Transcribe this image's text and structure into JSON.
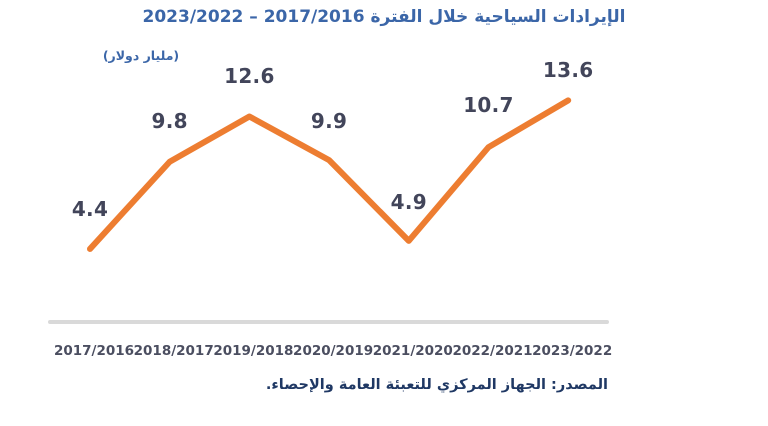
{
  "title": "الإيرادات السياحية خلال الفترة 2017/2016 – 2023/2022",
  "unit_label": "(مليار دولار)",
  "source": "المصدر: الجهاز المركزي للتعبئة العامة والإحصاء.",
  "colors": {
    "title": "#3B66A8",
    "unit_label": "#3B66A8",
    "line": "#ED7D31",
    "data_label": "#42455A",
    "x_label": "#4B4E60",
    "axis_line": "#D9D9D9",
    "source": "#1F3864",
    "background": "#FFFFFF"
  },
  "chart_data": {
    "type": "line",
    "title": "الإيرادات السياحية خلال الفترة 2017/2016 – 2023/2022",
    "categories": [
      "2017/2016",
      "2018/2017",
      "2019/2018",
      "2020/2019",
      "2021/2020",
      "2022/2021",
      "2023/2022"
    ],
    "values": [
      4.4,
      9.8,
      12.6,
      9.9,
      4.9,
      10.7,
      13.6
    ],
    "xlabel": "",
    "ylabel": "(مليار دولار)",
    "ylim": [
      0,
      20
    ],
    "grid": false,
    "legend": false,
    "data_labels": true,
    "line_color": "#ED7D31",
    "marker": "none"
  }
}
